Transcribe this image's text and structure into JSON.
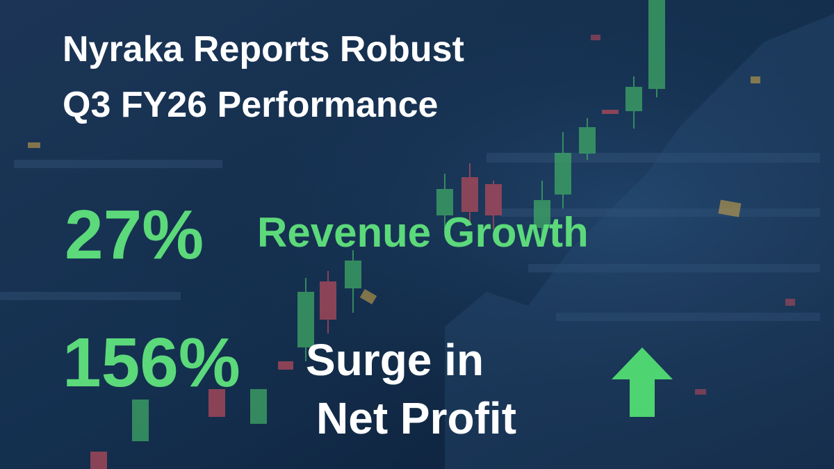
{
  "headline": {
    "lines": [
      "Nyraka Reports Robust",
      "Q3 FY26 Performance"
    ]
  },
  "highlights": [
    {
      "figure": "27%",
      "label_lines": [
        "Revenue Growth"
      ]
    },
    {
      "figure": "156%",
      "label_lines": [
        "Surge in",
        "Net Profit"
      ]
    }
  ]
}
